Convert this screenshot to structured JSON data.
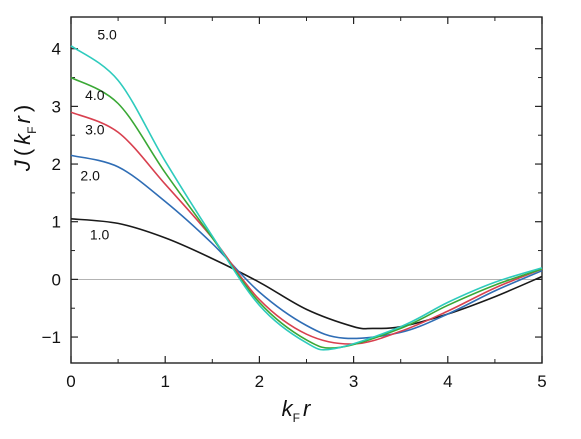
{
  "chart_data": {
    "type": "line",
    "xlabel": {
      "main": "k",
      "sub": "F",
      "tail": "r"
    },
    "ylabel": {
      "func": "J",
      "open": "(",
      "main": "k",
      "sub": "F",
      "tail": "r",
      "close": ")"
    },
    "xlim": [
      0,
      5
    ],
    "ylim": [
      -1.45,
      4.55
    ],
    "xticks": [
      0,
      1,
      2,
      3,
      4,
      5
    ],
    "yticks": [
      4,
      3,
      2,
      1,
      0,
      -1
    ],
    "ytick_labels": [
      "4",
      "3",
      "2",
      "1",
      "0",
      "−1"
    ],
    "grid": false,
    "zero_line": true,
    "series": [
      {
        "name": "1.0",
        "color": "#1a1a1a",
        "x": [
          0,
          0.5,
          1.0,
          1.5,
          2.0,
          2.5,
          3.0,
          3.2,
          3.5,
          4.0,
          4.5,
          5.0
        ],
        "y": [
          1.05,
          0.97,
          0.72,
          0.36,
          -0.05,
          -0.52,
          -0.82,
          -0.85,
          -0.82,
          -0.6,
          -0.3,
          0.05
        ]
      },
      {
        "name": "2.0",
        "color": "#2f6db5",
        "x": [
          0,
          0.5,
          1.0,
          1.5,
          2.0,
          2.5,
          2.9,
          3.5,
          4.0,
          4.5,
          5.0
        ],
        "y": [
          2.15,
          1.95,
          1.35,
          0.62,
          -0.22,
          -0.8,
          -1.02,
          -0.92,
          -0.6,
          -0.2,
          0.15
        ]
      },
      {
        "name": "3.0",
        "color": "#d8404f",
        "x": [
          0,
          0.5,
          1.0,
          1.5,
          2.0,
          2.5,
          3.0,
          3.5,
          4.0,
          4.5,
          5.0
        ],
        "y": [
          2.9,
          2.55,
          1.65,
          0.72,
          -0.35,
          -0.95,
          -1.12,
          -0.9,
          -0.55,
          -0.15,
          0.18
        ]
      },
      {
        "name": "4.0",
        "color": "#3aa835",
        "x": [
          0,
          0.5,
          1.0,
          1.5,
          2.0,
          2.5,
          2.85,
          3.5,
          4.0,
          4.5,
          5.0
        ],
        "y": [
          3.5,
          3.05,
          1.85,
          0.72,
          -0.4,
          -1.05,
          -1.18,
          -0.85,
          -0.45,
          -0.1,
          0.18
        ]
      },
      {
        "name": "5.0",
        "color": "#2ecbbd",
        "x": [
          0,
          0.5,
          1.0,
          1.5,
          2.0,
          2.5,
          2.8,
          3.5,
          4.0,
          4.5,
          5.0
        ],
        "y": [
          4.05,
          3.45,
          2.05,
          0.75,
          -0.45,
          -1.1,
          -1.2,
          -0.82,
          -0.4,
          -0.05,
          0.2
        ]
      }
    ],
    "curve_labels": [
      {
        "text": "5.0",
        "x": 0.28,
        "y": 4.25
      },
      {
        "text": "4.0",
        "x": 0.15,
        "y": 3.2
      },
      {
        "text": "3.0",
        "x": 0.15,
        "y": 2.6
      },
      {
        "text": "2.0",
        "x": 0.1,
        "y": 1.8
      },
      {
        "text": "1.0",
        "x": 0.2,
        "y": 0.78
      }
    ]
  }
}
